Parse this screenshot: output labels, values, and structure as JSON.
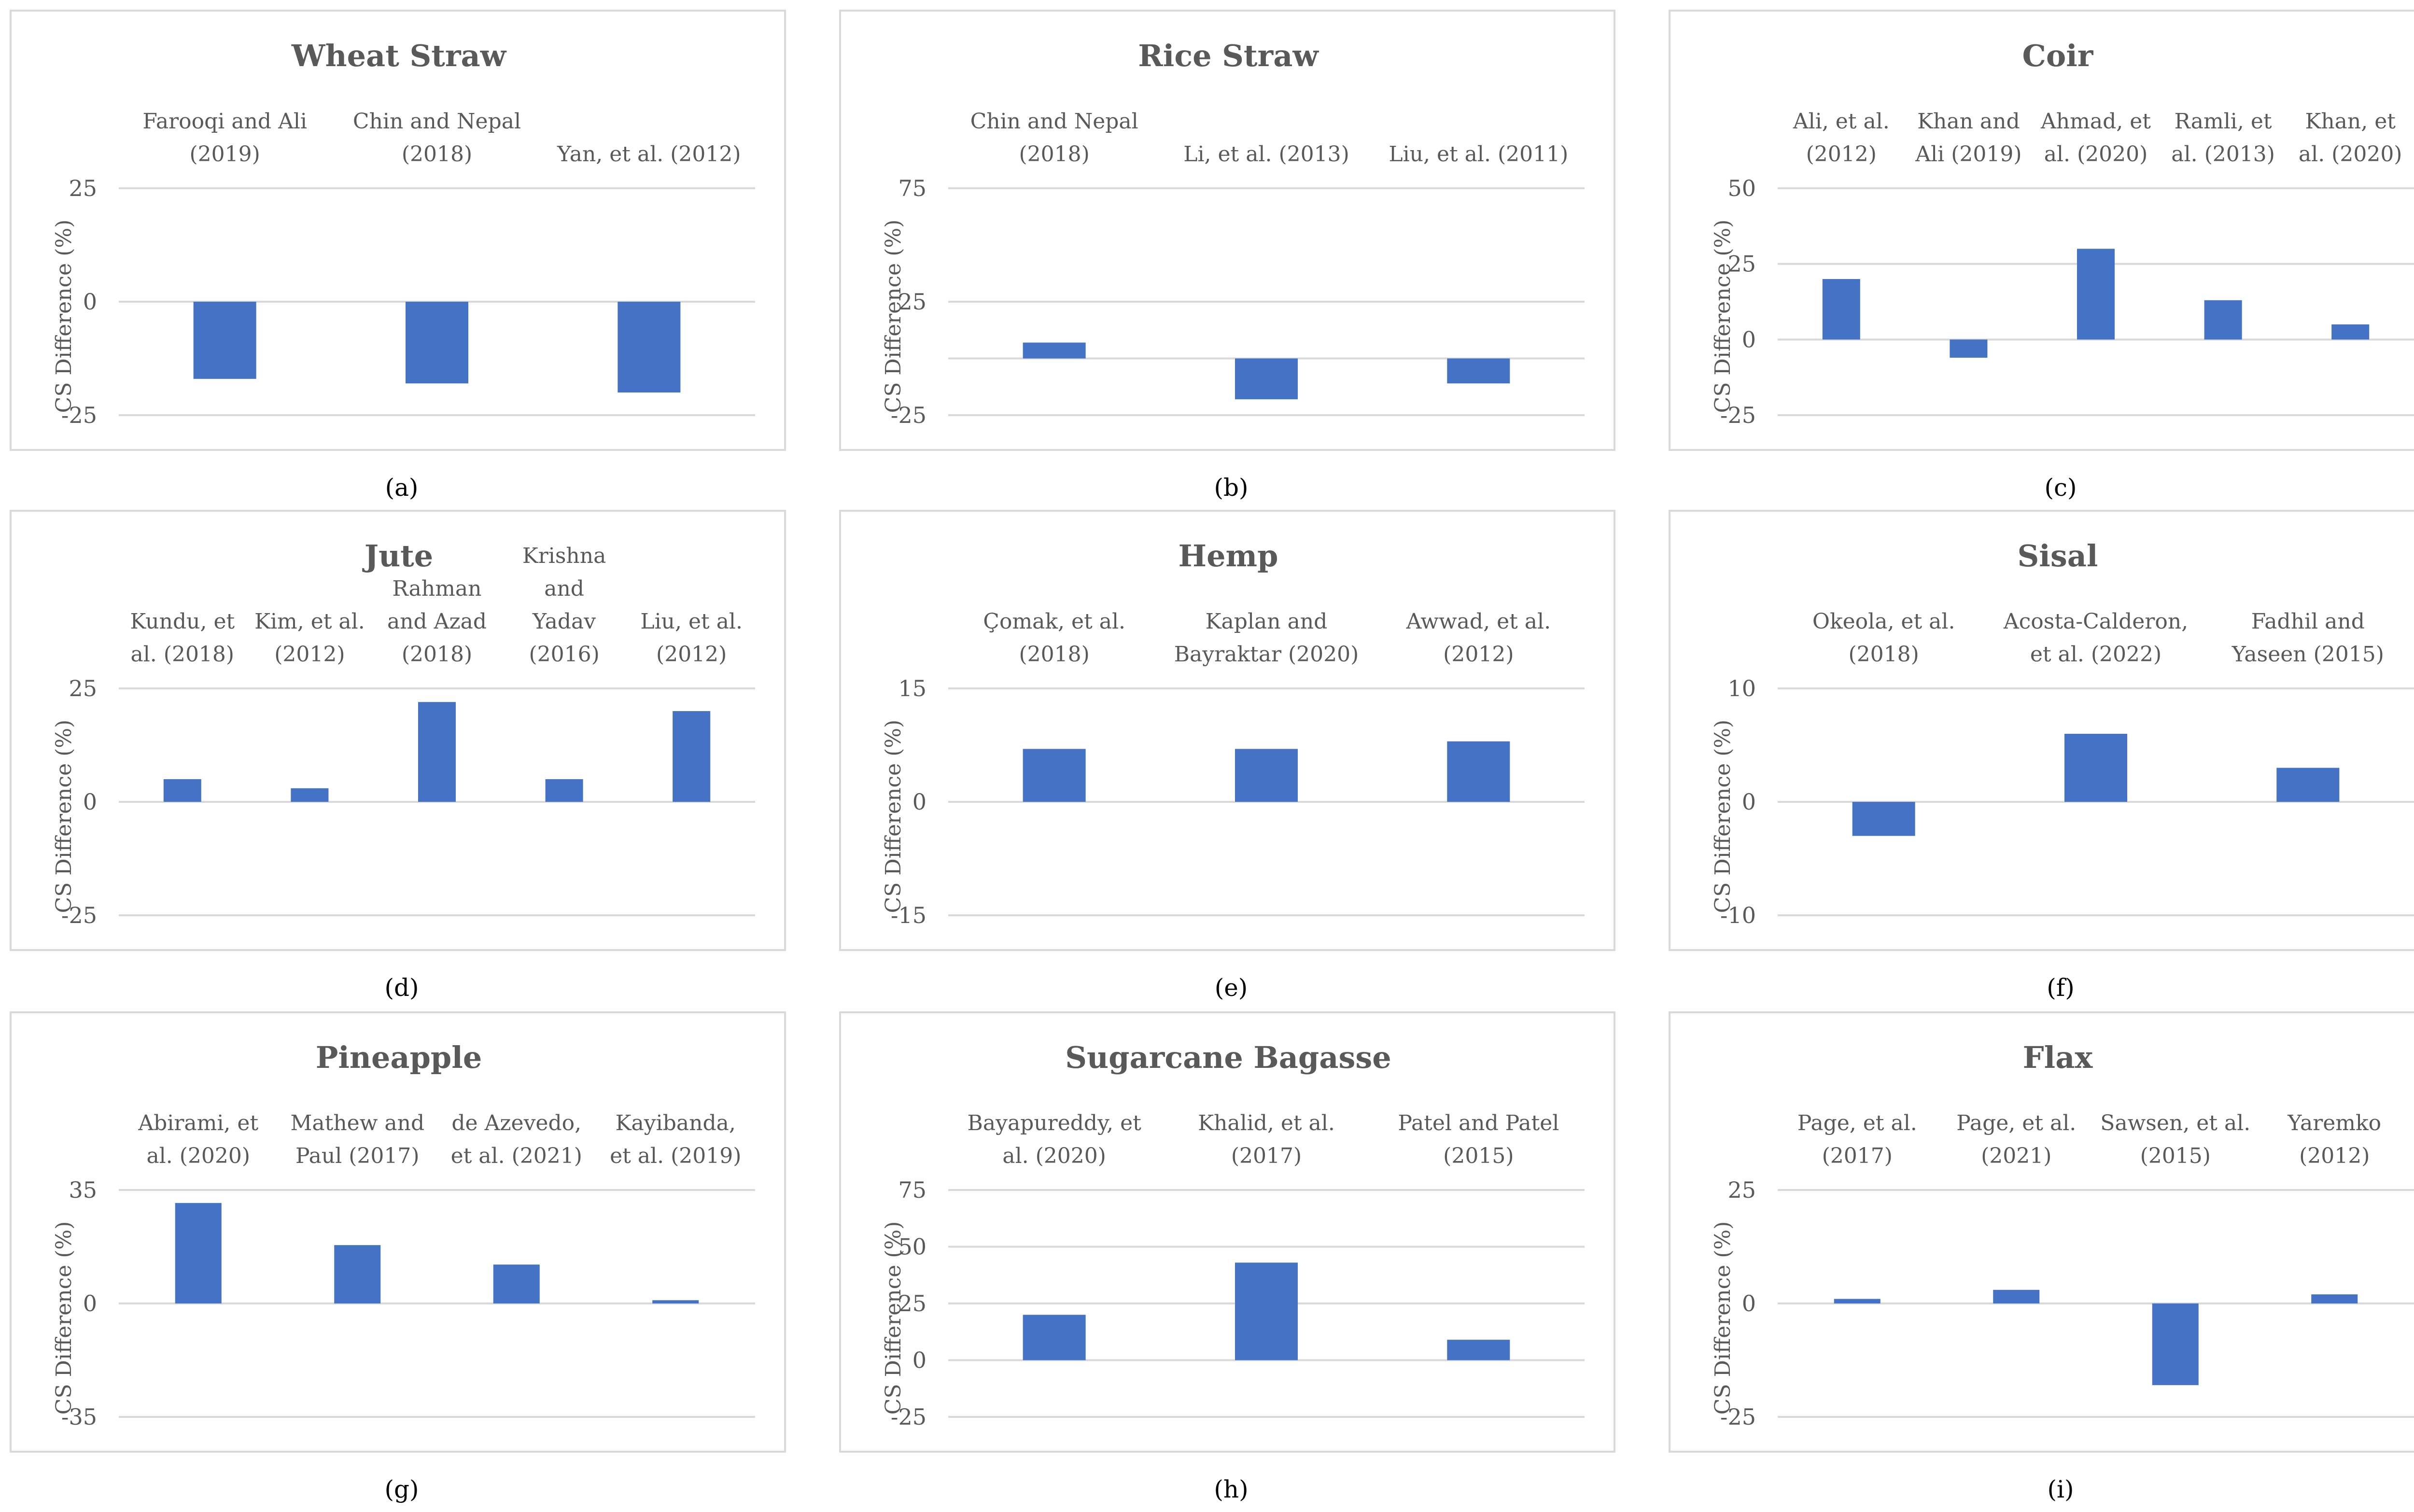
{
  "colors": {
    "bar": "#4472C4",
    "frame": "#d9d9d9",
    "grid": "#d9d9d9",
    "text": "#595959"
  },
  "chart_data": [
    {
      "type": "bar",
      "label": "(a)",
      "title": "Wheat Straw",
      "ylabel": "CS Difference (%)",
      "ylim": [
        -25,
        25
      ],
      "yticks": [
        -25,
        0,
        25
      ],
      "categories": [
        [
          "Farooqi and Ali",
          "(2019)"
        ],
        [
          "Chin and Nepal",
          "(2018)"
        ],
        [
          "Yan, et al. (2012)"
        ]
      ],
      "values": [
        -17,
        -18,
        -20
      ],
      "grid": true,
      "legend": "none"
    },
    {
      "type": "bar",
      "label": "(b)",
      "title": "Rice Straw",
      "ylabel": "CS Difference (%)",
      "ylim": [
        -25,
        75
      ],
      "yticks": [
        -25,
        25,
        75
      ],
      "categories": [
        [
          "Chin and Nepal",
          "(2018)"
        ],
        [
          "Li, et al. (2013)"
        ],
        [
          "Liu, et al. (2011)"
        ]
      ],
      "values": [
        7,
        -18,
        -11
      ],
      "grid": true,
      "legend": "none"
    },
    {
      "type": "bar",
      "label": "(c)",
      "title": "Coir",
      "ylabel": "CS Difference (%)",
      "ylim": [
        -25,
        50
      ],
      "yticks": [
        -25,
        0,
        25,
        50
      ],
      "categories": [
        [
          "Ali, et al.",
          "(2012)"
        ],
        [
          "Khan and",
          "Ali (2019)"
        ],
        [
          "Ahmad, et",
          "al. (2020)"
        ],
        [
          "Ramli, et",
          "al. (2013)"
        ],
        [
          "Khan, et",
          "al. (2020)"
        ]
      ],
      "values": [
        20,
        -6,
        30,
        13,
        5
      ],
      "grid": true,
      "legend": "none"
    },
    {
      "type": "bar",
      "label": "(d)",
      "title": "Jute",
      "ylabel": "CS Difference (%)",
      "ylim": [
        -25,
        25
      ],
      "yticks": [
        -25,
        0,
        25
      ],
      "categories": [
        [
          "Kundu, et",
          "al. (2018)"
        ],
        [
          "Kim, et al.",
          "(2012)"
        ],
        [
          "Rahman",
          "and Azad",
          "(2018)"
        ],
        [
          "Krishna",
          "and",
          "Yadav",
          "(2016)"
        ],
        [
          "Liu, et al.",
          "(2012)"
        ]
      ],
      "values": [
        5,
        3,
        22,
        5,
        20
      ],
      "grid": true,
      "legend": "none"
    },
    {
      "type": "bar",
      "label": "(e)",
      "title": "Hemp",
      "ylabel": "CS Difference (%)",
      "ylim": [
        -15,
        15
      ],
      "yticks": [
        -15,
        0,
        15
      ],
      "categories": [
        [
          "Çomak, et al.",
          "(2018)"
        ],
        [
          "Kaplan and",
          "Bayraktar (2020)"
        ],
        [
          "Awwad, et al.",
          "(2012)"
        ]
      ],
      "values": [
        7,
        7,
        8
      ],
      "grid": true,
      "legend": "none"
    },
    {
      "type": "bar",
      "label": "(f)",
      "title": "Sisal",
      "ylabel": "CS Difference (%)",
      "ylim": [
        -10,
        10
      ],
      "yticks": [
        -10,
        0,
        10
      ],
      "categories": [
        [
          "Okeola, et al.",
          "(2018)"
        ],
        [
          "Acosta-Calderon,",
          "et al. (2022)"
        ],
        [
          "Fadhil and",
          "Yaseen (2015)"
        ]
      ],
      "values": [
        -3,
        6,
        3
      ],
      "grid": true,
      "legend": "none"
    },
    {
      "type": "bar",
      "label": "(g)",
      "title": "Pineapple",
      "ylabel": "CS Difference (%)",
      "ylim": [
        -35,
        35
      ],
      "yticks": [
        -35,
        0,
        35
      ],
      "categories": [
        [
          "Abirami, et",
          "al. (2020)"
        ],
        [
          "Mathew and",
          "Paul (2017)"
        ],
        [
          "de Azevedo,",
          "et al. (2021)"
        ],
        [
          "Kayibanda,",
          "et al. (2019)"
        ]
      ],
      "values": [
        31,
        18,
        12,
        1
      ],
      "grid": true,
      "legend": "none"
    },
    {
      "type": "bar",
      "label": "(h)",
      "title": "Sugarcane Bagasse",
      "ylabel": "CS Difference (%)",
      "ylim": [
        -25,
        75
      ],
      "yticks": [
        -25,
        0,
        25,
        50,
        75
      ],
      "categories": [
        [
          "Bayapureddy, et",
          "al. (2020)"
        ],
        [
          "Khalid, et al.",
          "(2017)"
        ],
        [
          "Patel and Patel",
          "(2015)"
        ]
      ],
      "values": [
        20,
        43,
        9
      ],
      "grid": true,
      "legend": "none"
    },
    {
      "type": "bar",
      "label": "(i)",
      "title": "Flax",
      "ylabel": "CS Difference (%)",
      "ylim": [
        -25,
        25
      ],
      "yticks": [
        -25,
        0,
        25
      ],
      "categories": [
        [
          "Page, et al.",
          "(2017)"
        ],
        [
          "Page, et al.",
          "(2021)"
        ],
        [
          "Sawsen, et al.",
          "(2015)"
        ],
        [
          "Yaremko",
          "(2012)"
        ]
      ],
      "values": [
        1,
        3,
        -18,
        2
      ],
      "grid": true,
      "legend": "none"
    }
  ]
}
